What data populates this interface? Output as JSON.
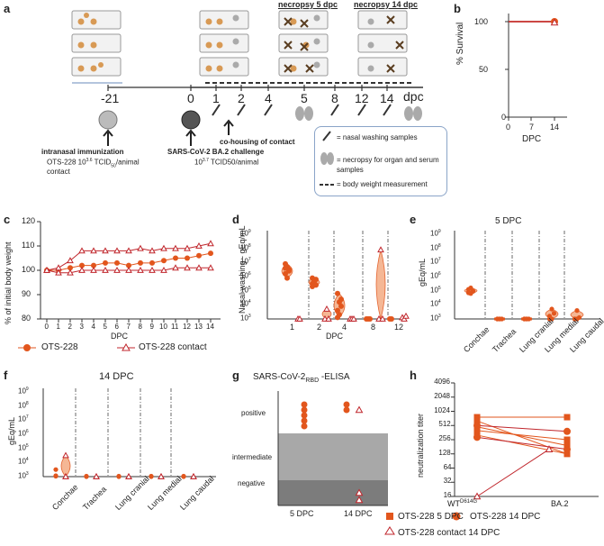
{
  "panels": {
    "a": "a",
    "b": "b",
    "c": "c",
    "d": "d",
    "e": "e",
    "f": "f",
    "g": "g",
    "h": "h"
  },
  "colors": {
    "orange": "#e2561d",
    "light_orange": "#f4b08a",
    "red": "#c0262c",
    "grey": "#888888"
  },
  "panel_a": {
    "necropsy5": "necropsy 5 dpc",
    "necropsy14": "necropsy 14 dpc",
    "timeline_days": [
      "-21",
      "0",
      "1",
      "2",
      "4",
      "5",
      "8",
      "12",
      "14"
    ],
    "dpc_unit": "dpc",
    "immunization_title": "intranasal immunization",
    "immunization_line1": "OTS-228 10",
    "immunization_exp": "3.6",
    "immunization_unit": " TCID",
    "immunization_sub": "50",
    "immunization_tail": "/animal",
    "contact_label": "contact",
    "challenge_title": "SARS-CoV-2 BA.2 challenge",
    "challenge_dose": "10",
    "challenge_exp": "3.7",
    "challenge_tail": " TCID50/animal",
    "cohousing": "co-housing of contact",
    "legend_nasal": "= nasal washing samples",
    "legend_necropsy": "= necropsy for organ and serum samples",
    "legend_bw": "= body weight measurement"
  },
  "panel_b": {
    "ylabel": "% Survival",
    "xlabel": "DPC",
    "yticks": [
      "0",
      "50",
      "100"
    ],
    "xticks": [
      "0",
      "7",
      "14"
    ]
  },
  "panel_c": {
    "ylabel": "% of initial body weight",
    "xlabel": "DPC",
    "yticks": [
      "80",
      "90",
      "100",
      "110",
      "120"
    ],
    "xticks": [
      "0",
      "1",
      "2",
      "3",
      "4",
      "5",
      "6",
      "7",
      "8",
      "9",
      "10",
      "11",
      "12",
      "13",
      "14"
    ],
    "legend": [
      "OTS-228",
      "OTS-228 contact"
    ]
  },
  "panel_d": {
    "ylabel": "Nasal washing - gEq/mL",
    "xlabel": "DPC",
    "xticks": [
      "1",
      "2",
      "4",
      "8",
      "12"
    ]
  },
  "panel_e": {
    "title": "5 DPC",
    "ylabel": "gEq/mL",
    "xticks": [
      "Conchae",
      "Trachea",
      "Lung cranial",
      "Lung medial",
      "Lung caudal"
    ]
  },
  "panel_f": {
    "title": "14 DPC",
    "ylabel": "gEq/mL",
    "xticks": [
      "Conchae",
      "Trachea",
      "Lung cranial",
      "Lung medial",
      "Lung caudal"
    ]
  },
  "panel_g": {
    "title_pre": "SARS-CoV-2",
    "title_sub": "RBD",
    "title_post": " -ELISA",
    "categories": [
      "positive",
      "intermediate",
      "negative"
    ],
    "xticks": [
      "5 DPC",
      "14 DPC"
    ]
  },
  "panel_h": {
    "ylabel": "neutralization titer",
    "yticks": [
      "16",
      "32",
      "64",
      "128",
      "256",
      "512",
      "1024",
      "2048",
      "4096"
    ],
    "xtick1": "WT",
    "xtick1_sup": "D614G",
    "xtick2": "BA.2",
    "legend": [
      "OTS-228 5 DPC",
      "OTS-228 14 DPC",
      "OTS-228 contact 14 DPC"
    ]
  },
  "chart_data": [
    {
      "type": "line",
      "title": "",
      "ylabel": "% Survival",
      "xlabel": "DPC",
      "x": [
        0,
        14
      ],
      "series": [
        {
          "name": "OTS-228",
          "values": [
            100,
            100
          ]
        },
        {
          "name": "OTS-228 contact",
          "values": [
            100,
            100
          ]
        }
      ],
      "ylim": [
        0,
        100
      ],
      "xlim": [
        0,
        14
      ]
    },
    {
      "type": "line",
      "ylabel": "% of initial body weight",
      "xlabel": "DPC",
      "ylim": [
        80,
        120
      ],
      "x": [
        0,
        1,
        2,
        3,
        4,
        5,
        6,
        7,
        8,
        9,
        10,
        11,
        12,
        13,
        14
      ],
      "series": [
        {
          "name": "OTS-228",
          "values": [
            100,
            100,
            101,
            102,
            102,
            103,
            103,
            102,
            103,
            103,
            104,
            105,
            105,
            106,
            107
          ]
        },
        {
          "name": "OTS-228 contact",
          "values": [
            100,
            101,
            104,
            108,
            108,
            108,
            108,
            108,
            109,
            108,
            109,
            109,
            109,
            110,
            111
          ]
        },
        {
          "name": "OTS-228 contact",
          "values": [
            100,
            99,
            99,
            100,
            100,
            100,
            100,
            100,
            100,
            100,
            100,
            101,
            101,
            101,
            101
          ]
        }
      ]
    },
    {
      "type": "scatter",
      "ylabel": "Nasal washing - gEq/mL",
      "xlabel": "DPC",
      "ylog": [
        3,
        9
      ],
      "groups": [
        {
          "dpc": "1",
          "log_values": [
            6.2,
            6.7,
            6.5,
            6.9,
            5.9,
            6.4,
            6.6
          ],
          "contact": [
            3.0,
            3.0
          ]
        },
        {
          "dpc": "2",
          "log_values": [
            5.9,
            5.7,
            5.8,
            5.5,
            5.6,
            5.4,
            5.3
          ],
          "contact": [
            3.0,
            3.7,
            3.0
          ]
        },
        {
          "dpc": "4",
          "log_values": [
            4.8,
            4.2,
            3.9,
            3.6,
            3.3,
            4.4,
            3.1
          ],
          "contact": [
            3.0,
            3.0,
            3.0
          ]
        },
        {
          "dpc": "8",
          "log_values": [
            3.0,
            3.0,
            3.0
          ],
          "contact": [
            3.0,
            7.9,
            3.0
          ]
        },
        {
          "dpc": "12",
          "log_values": [
            3.0,
            3.0
          ],
          "contact": [
            3.1,
            3.0,
            3.2
          ]
        }
      ]
    },
    {
      "type": "scatter",
      "title": "5 DPC",
      "ylabel": "gEq/mL",
      "ylog": [
        3,
        9
      ],
      "groups": [
        {
          "tissue": "Conchae",
          "log_values": [
            5.1,
            4.8,
            5.0,
            4.9,
            5.2,
            4.95,
            4.85
          ]
        },
        {
          "tissue": "Trachea",
          "log_values": [
            3,
            3,
            3,
            3,
            3
          ]
        },
        {
          "tissue": "Lung cranial",
          "log_values": [
            3,
            3,
            3,
            3,
            3
          ]
        },
        {
          "tissue": "Lung medial",
          "log_values": [
            3.0,
            3.7,
            3.4,
            3.2,
            3.0
          ]
        },
        {
          "tissue": "Lung caudal",
          "log_values": [
            3.0,
            3.6,
            3.1,
            3.0,
            3.0
          ]
        }
      ]
    },
    {
      "type": "scatter",
      "title": "14 DPC",
      "ylabel": "gEq/mL",
      "ylog": [
        3,
        9
      ],
      "groups": [
        {
          "tissue": "Conchae",
          "log_values": [
            3.5,
            3.0,
            3.0
          ],
          "contact": [
            4.5,
            3.0,
            3.0
          ]
        },
        {
          "tissue": "Trachea",
          "log_values": [
            3,
            3
          ],
          "contact": [
            3,
            3
          ]
        },
        {
          "tissue": "Lung cranial",
          "log_values": [
            3,
            3
          ],
          "contact": [
            3,
            3
          ]
        },
        {
          "tissue": "Lung medial",
          "log_values": [
            3,
            3
          ],
          "contact": [
            3,
            3
          ]
        },
        {
          "tissue": "Lung caudal",
          "log_values": [
            3,
            3
          ],
          "contact": [
            3,
            3
          ]
        }
      ]
    },
    {
      "type": "scatter",
      "title": "SARS-CoV-2 RBD -ELISA",
      "categories": [
        "positive",
        "intermediate",
        "negative"
      ],
      "groups": [
        {
          "x": "5 DPC",
          "positive": 5
        },
        {
          "x": "14 DPC",
          "positive": 2,
          "positive_contact": 1,
          "negative_contact": 2
        }
      ]
    },
    {
      "type": "line",
      "ylabel": "neutralization titer",
      "categories": [
        "WT D614G",
        "BA.2"
      ],
      "ylog2": [
        16,
        4096
      ],
      "series": [
        {
          "name": "OTS-228 5 DPC",
          "values": [
            [
              768,
              768
            ],
            [
              640,
              128
            ],
            [
              480,
              192
            ],
            [
              320,
              128
            ],
            [
              400,
              256
            ]
          ]
        },
        {
          "name": "OTS-228 14 DPC",
          "values": [
            [
              512,
              384
            ],
            [
              288,
              160
            ]
          ]
        },
        {
          "name": "OTS-228 contact 14 DPC",
          "values": [
            [
              16,
              160
            ]
          ]
        }
      ]
    }
  ]
}
